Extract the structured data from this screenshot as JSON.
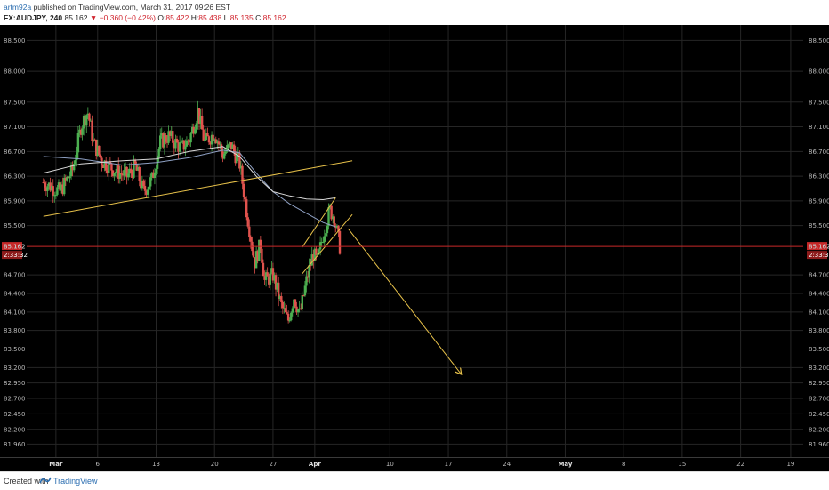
{
  "header": {
    "author": "artm92a",
    "published_text": "published on TradingView.com, March 31, 2017 09:26 EST",
    "symbol": "FX:AUDJPY, 240",
    "last": "85.162",
    "change_arrow": "▼",
    "change": "−0.360 (−0.42%)",
    "ohlc": {
      "o_label": "O:",
      "o": "85.422",
      "h_label": "H:",
      "h": "85.438",
      "l_label": "L:",
      "l": "85.135",
      "c_label": "C:",
      "c": "85.162"
    }
  },
  "footer": {
    "created_with": "Created with",
    "brand": "TradingView",
    "logo_icon": "tradingview-logo-icon"
  },
  "colors": {
    "background": "#000000",
    "grid": "#262626",
    "bull": "#4caf50",
    "bear": "#e0524d",
    "trendline": "#e8c24a",
    "ma_slow": "#8fa1c4",
    "ma_fast": "#d8d8d8",
    "price_line": "#c82828"
  },
  "chart_data": {
    "type": "candlestick",
    "symbol": "FX:AUDJPY",
    "interval": "240",
    "ylim": [
      81.75,
      88.75
    ],
    "y_ticks_left": [
      "88.500",
      "88.000",
      "87.500",
      "87.100",
      "86.700",
      "86.300",
      "85.900",
      "85.500",
      "85.162",
      "84.700",
      "84.400",
      "84.100",
      "83.800",
      "83.500",
      "83.200",
      "82.950",
      "82.700",
      "82.450",
      "82.200",
      "81.960"
    ],
    "y_ticks_right": [
      "88.500",
      "88.000",
      "87.500",
      "87.100",
      "86.700",
      "86.300",
      "85.900",
      "85.500",
      "85.162",
      "84.700",
      "84.400",
      "84.100",
      "83.800",
      "83.500",
      "83.200",
      "82.950",
      "82.700",
      "82.450",
      "82.200",
      "81.960"
    ],
    "y_tick_values": [
      88.5,
      88.0,
      87.5,
      87.1,
      86.7,
      86.3,
      85.9,
      85.5,
      85.162,
      84.7,
      84.4,
      84.1,
      83.8,
      83.5,
      83.2,
      82.95,
      82.7,
      82.45,
      82.2,
      81.96
    ],
    "x_tick_labels": [
      "Mar",
      "6",
      "13",
      "20",
      "27",
      "Apr",
      "10",
      "17",
      "24",
      "May",
      "8",
      "15",
      "22",
      "19"
    ],
    "x_tick_days": [
      0,
      5,
      12,
      19,
      26,
      31,
      40,
      47,
      54,
      61,
      68,
      75,
      82,
      88
    ],
    "x_tick_bold": [
      "Mar",
      "Apr",
      "May"
    ],
    "last_price": 85.162,
    "last_price_label": "85.162",
    "countdown": "2:33:32",
    "waypoints": [
      [
        -1.5,
        86.2
      ],
      [
        0.5,
        86.05
      ],
      [
        2.0,
        86.4
      ],
      [
        3.0,
        87.1
      ],
      [
        3.8,
        87.35
      ],
      [
        4.5,
        86.85
      ],
      [
        5.5,
        86.55
      ],
      [
        7.0,
        86.4
      ],
      [
        8.5,
        86.3
      ],
      [
        9.5,
        86.45
      ],
      [
        10.5,
        86.05
      ],
      [
        11.5,
        86.25
      ],
      [
        12.5,
        86.85
      ],
      [
        13.5,
        86.95
      ],
      [
        15.0,
        86.75
      ],
      [
        16.0,
        86.9
      ],
      [
        17.0,
        87.35
      ],
      [
        17.8,
        86.85
      ],
      [
        19.0,
        87.0
      ],
      [
        20.0,
        86.65
      ],
      [
        21.0,
        86.8
      ],
      [
        22.0,
        86.5
      ],
      [
        23.0,
        85.6
      ],
      [
        23.8,
        84.9
      ],
      [
        24.5,
        85.2
      ],
      [
        25.0,
        84.6
      ],
      [
        26.0,
        84.7
      ],
      [
        27.0,
        84.2
      ],
      [
        27.8,
        83.95
      ],
      [
        28.5,
        84.35
      ],
      [
        29.2,
        84.05
      ],
      [
        30.0,
        84.6
      ],
      [
        30.8,
        85.05
      ],
      [
        31.3,
        84.9
      ],
      [
        32.0,
        85.35
      ],
      [
        32.8,
        85.75
      ],
      [
        33.3,
        85.65
      ],
      [
        34.0,
        85.16
      ]
    ],
    "series": [
      {
        "name": "",
        "type": "moving-average",
        "role": "slow",
        "color": "#8fa1c4",
        "points": [
          [
            -1.5,
            86.62
          ],
          [
            3,
            86.58
          ],
          [
            8,
            86.48
          ],
          [
            12,
            86.52
          ],
          [
            16,
            86.6
          ],
          [
            20,
            86.72
          ],
          [
            22,
            86.68
          ],
          [
            24,
            86.35
          ],
          [
            26,
            86.05
          ],
          [
            28,
            85.85
          ],
          [
            30,
            85.7
          ],
          [
            32,
            85.55
          ],
          [
            33.5,
            85.48
          ]
        ]
      },
      {
        "name": "",
        "type": "moving-average",
        "role": "fast",
        "color": "#d8d8d8",
        "points": [
          [
            -1.5,
            86.35
          ],
          [
            3,
            86.5
          ],
          [
            8,
            86.55
          ],
          [
            12,
            86.58
          ],
          [
            16,
            86.7
          ],
          [
            20,
            86.78
          ],
          [
            22,
            86.62
          ],
          [
            24,
            86.3
          ],
          [
            26,
            86.05
          ],
          [
            28,
            85.98
          ],
          [
            30,
            85.93
          ],
          [
            32,
            85.92
          ],
          [
            33.5,
            85.95
          ]
        ]
      }
    ],
    "annotations": [
      {
        "type": "trendline",
        "from": [
          -1.5,
          85.65
        ],
        "to": [
          35.5,
          86.55
        ]
      },
      {
        "type": "trendline",
        "from": [
          29.5,
          85.15
        ],
        "to": [
          33.5,
          85.95
        ]
      },
      {
        "type": "trendline",
        "from": [
          29.5,
          84.72
        ],
        "to": [
          35.5,
          85.68
        ]
      },
      {
        "type": "arrow",
        "from": [
          35.0,
          85.45
        ],
        "to": [
          48.5,
          83.1
        ]
      }
    ]
  }
}
